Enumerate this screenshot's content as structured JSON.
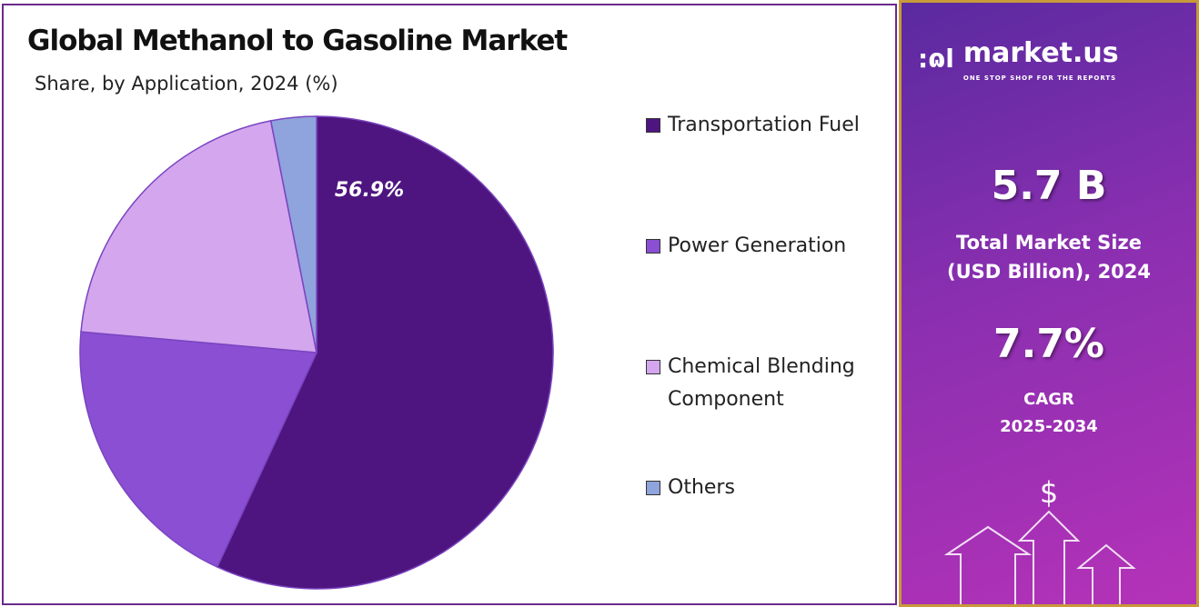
{
  "chart_data": {
    "type": "pie",
    "title": "Global Methanol to Gasoline Market",
    "subtitle": "Share, by Application, 2024 (%)",
    "categories": [
      "Transportation Fuel",
      "Power Generation",
      "Chemical Blending Component",
      "Others"
    ],
    "values": [
      56.9,
      19.5,
      20.5,
      3.1
    ],
    "colors": [
      "#4e1580",
      "#8a4fd2",
      "#d3a6ee",
      "#8fa3dc"
    ],
    "data_labels": [
      "56.9%",
      "",
      "",
      ""
    ],
    "legend": "right"
  },
  "legend": {
    "l0": "Transportation Fuel",
    "l1": "Power Generation",
    "l2a": "Chemical Blending",
    "l2b": "Component",
    "l3": "Others"
  },
  "panel": {
    "logo_name": "market.us",
    "logo_tag": "ONE STOP SHOP FOR THE REPORTS",
    "market_size": "5.7 B",
    "market_size_label1": "Total Market Size",
    "market_size_label2": "(USD Billion), 2024",
    "cagr": "7.7%",
    "cagr_label1": "CAGR",
    "cagr_label2": "2025-2034",
    "dollar": "$"
  }
}
